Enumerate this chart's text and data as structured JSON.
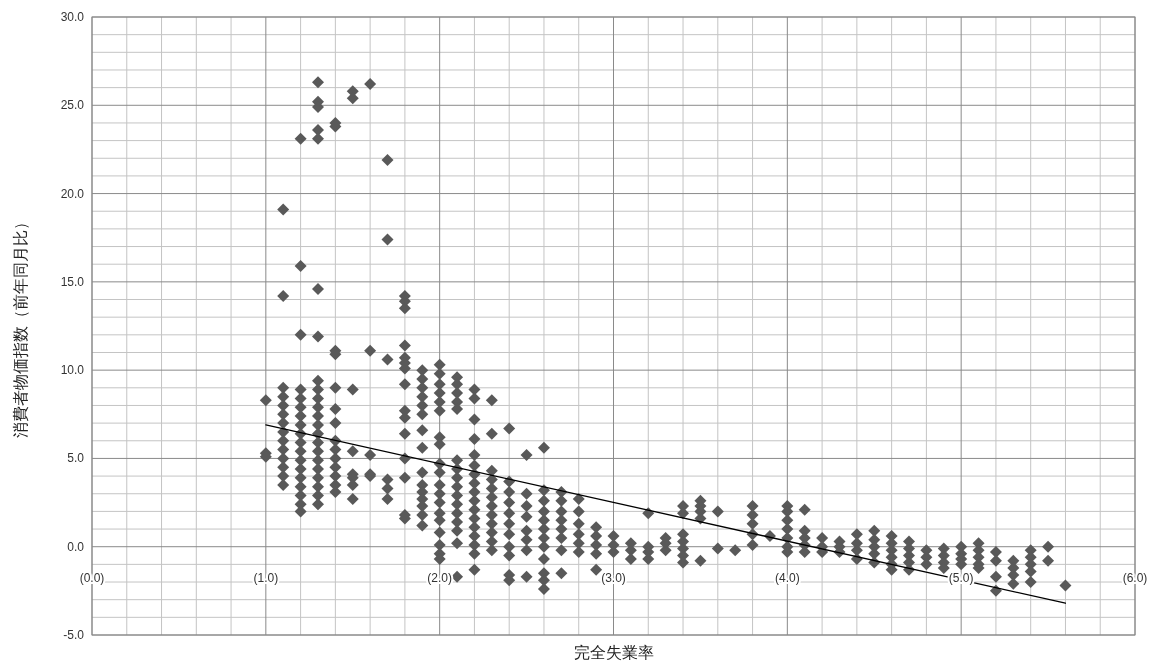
{
  "chart_data": {
    "type": "scatter",
    "xlabel": "完全失業率",
    "ylabel": "消費者物価指数（前年同月比）",
    "grid": true,
    "xlim": [
      0,
      6
    ],
    "ylim": [
      -5,
      30
    ],
    "xticks": [
      {
        "value": 0,
        "label": "(0.0)"
      },
      {
        "value": 1,
        "label": "(1.0)"
      },
      {
        "value": 2,
        "label": "(2.0)"
      },
      {
        "value": 3,
        "label": "(3.0)"
      },
      {
        "value": 4,
        "label": "(4.0)"
      },
      {
        "value": 5,
        "label": "(5.0)"
      },
      {
        "value": 6,
        "label": "(6.0)"
      }
    ],
    "yticks": [
      {
        "value": -5,
        "label": "-5.0"
      },
      {
        "value": 0,
        "label": "0.0"
      },
      {
        "value": 5,
        "label": "5.0"
      },
      {
        "value": 10,
        "label": "10.0"
      },
      {
        "value": 15,
        "label": "15.0"
      },
      {
        "value": 20,
        "label": "20.0"
      },
      {
        "value": 25,
        "label": "25.0"
      },
      {
        "value": 30,
        "label": "30.0"
      }
    ],
    "series": [
      {
        "type": "scatter",
        "marker": "diamond",
        "color": "#595959",
        "x": [
          1.0,
          1.0,
          1.0,
          1.1,
          1.1,
          1.1,
          1.1,
          1.1,
          1.1,
          1.1,
          1.1,
          1.1,
          1.1,
          1.1,
          1.1,
          1.1,
          1.1,
          1.2,
          1.2,
          1.2,
          1.2,
          1.2,
          1.2,
          1.2,
          1.2,
          1.2,
          1.2,
          1.2,
          1.2,
          1.2,
          1.2,
          1.2,
          1.2,
          1.2,
          1.2,
          1.3,
          1.3,
          1.3,
          1.3,
          1.3,
          1.3,
          1.3,
          1.3,
          1.3,
          1.3,
          1.3,
          1.3,
          1.3,
          1.3,
          1.3,
          1.3,
          1.3,
          1.3,
          1.3,
          1.3,
          1.3,
          1.3,
          1.4,
          1.4,
          1.4,
          1.4,
          1.4,
          1.4,
          1.4,
          1.4,
          1.4,
          1.4,
          1.4,
          1.4,
          1.4,
          1.4,
          1.5,
          1.5,
          1.5,
          1.5,
          1.5,
          1.5,
          1.5,
          1.5,
          1.6,
          1.6,
          1.6,
          1.6,
          1.6,
          1.7,
          1.7,
          1.7,
          1.7,
          1.7,
          1.7,
          1.8,
          1.8,
          1.8,
          1.8,
          1.8,
          1.8,
          1.8,
          1.8,
          1.8,
          1.8,
          1.8,
          1.8,
          1.8,
          1.8,
          1.8,
          1.9,
          1.9,
          1.9,
          1.9,
          1.9,
          1.9,
          1.9,
          1.9,
          1.9,
          1.9,
          1.9,
          1.9,
          1.9,
          1.9,
          1.9,
          2.0,
          2.0,
          2.0,
          2.0,
          2.0,
          2.0,
          2.0,
          2.0,
          2.0,
          2.0,
          2.0,
          2.0,
          2.0,
          2.0,
          2.0,
          2.0,
          2.0,
          2.0,
          2.0,
          2.1,
          2.1,
          2.1,
          2.1,
          2.1,
          2.1,
          2.1,
          2.1,
          2.1,
          2.1,
          2.1,
          2.1,
          2.1,
          2.1,
          2.1,
          2.1,
          2.2,
          2.2,
          2.2,
          2.2,
          2.2,
          2.2,
          2.2,
          2.2,
          2.2,
          2.2,
          2.2,
          2.2,
          2.2,
          2.2,
          2.2,
          2.2,
          2.2,
          2.3,
          2.3,
          2.3,
          2.3,
          2.3,
          2.3,
          2.3,
          2.3,
          2.3,
          2.3,
          2.3,
          2.3,
          2.4,
          2.4,
          2.4,
          2.4,
          2.4,
          2.4,
          2.4,
          2.4,
          2.4,
          2.4,
          2.4,
          2.5,
          2.5,
          2.5,
          2.5,
          2.5,
          2.5,
          2.5,
          2.5,
          2.6,
          2.6,
          2.6,
          2.6,
          2.6,
          2.6,
          2.6,
          2.6,
          2.6,
          2.6,
          2.6,
          2.6,
          2.7,
          2.7,
          2.7,
          2.7,
          2.7,
          2.7,
          2.7,
          2.7,
          2.8,
          2.8,
          2.8,
          2.8,
          2.8,
          2.8,
          2.9,
          2.9,
          2.9,
          2.9,
          2.9,
          3.0,
          3.0,
          3.0,
          3.1,
          3.1,
          3.1,
          3.2,
          3.2,
          3.2,
          3.2,
          3.3,
          3.3,
          3.3,
          3.4,
          3.4,
          3.4,
          3.4,
          3.4,
          3.4,
          3.4,
          3.5,
          3.5,
          3.5,
          3.5,
          3.5,
          3.6,
          3.6,
          3.7,
          3.8,
          3.8,
          3.8,
          3.8,
          3.8,
          3.9,
          4.0,
          4.0,
          4.0,
          4.0,
          4.0,
          4.0,
          4.0,
          4.1,
          4.1,
          4.1,
          4.1,
          4.1,
          4.2,
          4.2,
          4.2,
          4.3,
          4.3,
          4.3,
          4.4,
          4.4,
          4.4,
          4.4,
          4.5,
          4.5,
          4.5,
          4.5,
          4.5,
          4.6,
          4.6,
          4.6,
          4.6,
          4.6,
          4.6,
          4.7,
          4.7,
          4.7,
          4.7,
          4.7,
          4.8,
          4.8,
          4.8,
          4.9,
          4.9,
          4.9,
          4.9,
          5.0,
          5.0,
          5.0,
          5.0,
          5.1,
          5.1,
          5.1,
          5.1,
          5.1,
          5.2,
          5.2,
          5.2,
          5.2,
          5.3,
          5.3,
          5.3,
          5.3,
          5.4,
          5.4,
          5.4,
          5.4,
          5.4,
          5.5,
          5.5,
          5.6
        ],
        "values": [
          8.3,
          5.3,
          5.1,
          19.1,
          14.2,
          9.0,
          8.5,
          8.0,
          7.5,
          7.0,
          6.5,
          6.0,
          5.5,
          5.0,
          4.5,
          4.0,
          3.5,
          23.1,
          15.9,
          12.0,
          8.9,
          8.4,
          7.9,
          7.4,
          6.9,
          6.4,
          5.9,
          5.4,
          4.9,
          4.4,
          3.9,
          3.4,
          2.9,
          2.4,
          2.0,
          26.3,
          25.2,
          24.9,
          23.6,
          23.1,
          14.6,
          11.9,
          9.4,
          8.9,
          8.4,
          7.9,
          7.4,
          6.9,
          6.4,
          5.9,
          5.4,
          4.9,
          4.4,
          3.9,
          3.4,
          2.9,
          2.4,
          24.0,
          23.8,
          11.1,
          10.9,
          9.0,
          7.8,
          7.0,
          6.0,
          5.5,
          5.0,
          4.5,
          4.0,
          3.5,
          3.1,
          25.8,
          25.4,
          8.9,
          5.4,
          4.1,
          3.9,
          3.5,
          2.7,
          26.2,
          11.1,
          5.2,
          4.1,
          4.0,
          21.9,
          17.4,
          10.6,
          3.8,
          3.3,
          2.7,
          14.2,
          13.9,
          13.5,
          11.4,
          10.7,
          10.4,
          10.1,
          9.2,
          7.7,
          7.3,
          6.4,
          5.0,
          3.9,
          1.8,
          1.6,
          10.0,
          9.5,
          9.0,
          8.5,
          8.0,
          7.5,
          6.6,
          5.6,
          4.2,
          3.5,
          3.1,
          2.7,
          2.3,
          1.8,
          1.2,
          10.3,
          9.8,
          9.2,
          8.7,
          8.2,
          7.7,
          6.2,
          5.8,
          4.7,
          4.2,
          3.5,
          3.0,
          2.5,
          1.9,
          1.5,
          0.8,
          0.1,
          -0.4,
          -0.7,
          9.6,
          9.2,
          8.7,
          8.2,
          7.8,
          4.9,
          4.4,
          3.9,
          3.4,
          2.9,
          2.4,
          1.9,
          1.4,
          0.9,
          0.2,
          -1.7,
          8.9,
          8.4,
          7.2,
          6.1,
          5.2,
          4.6,
          4.1,
          3.6,
          3.1,
          2.6,
          2.1,
          1.6,
          1.1,
          0.6,
          0.1,
          -0.4,
          -1.3,
          8.3,
          6.4,
          4.3,
          3.8,
          3.3,
          2.8,
          2.3,
          1.8,
          1.3,
          0.8,
          0.3,
          -0.2,
          6.7,
          3.7,
          3.1,
          2.5,
          1.9,
          1.3,
          0.7,
          0.0,
          -0.5,
          -1.6,
          -1.9,
          5.2,
          3.0,
          2.3,
          1.7,
          0.9,
          0.4,
          -0.2,
          -1.7,
          5.6,
          3.2,
          2.6,
          2.0,
          1.5,
          1.0,
          0.5,
          0.0,
          -0.7,
          -1.5,
          -1.9,
          -2.4,
          3.1,
          2.6,
          2.0,
          1.5,
          1.0,
          0.5,
          -0.2,
          -1.5,
          2.7,
          2.0,
          1.3,
          0.7,
          0.2,
          -0.3,
          1.1,
          0.6,
          0.1,
          -0.4,
          -1.3,
          0.6,
          0.1,
          -0.3,
          0.2,
          -0.2,
          -0.7,
          1.9,
          0.0,
          -0.3,
          -0.7,
          0.5,
          0.2,
          -0.2,
          2.3,
          1.9,
          0.7,
          0.3,
          -0.1,
          -0.5,
          -0.9,
          2.6,
          2.3,
          2.0,
          1.6,
          -0.8,
          2.0,
          -0.1,
          -0.2,
          2.3,
          1.8,
          1.3,
          0.7,
          0.1,
          0.6,
          2.3,
          2.0,
          1.5,
          1.0,
          0.5,
          0.0,
          -0.3,
          2.1,
          0.9,
          0.5,
          0.1,
          -0.3,
          0.5,
          0.0,
          -0.3,
          0.3,
          0.0,
          -0.3,
          0.7,
          0.2,
          -0.2,
          -0.7,
          0.9,
          0.4,
          0.0,
          -0.4,
          -0.9,
          0.6,
          0.2,
          -0.2,
          -0.6,
          -1.0,
          -1.3,
          0.3,
          -0.1,
          -0.5,
          -0.9,
          -1.3,
          -0.2,
          -0.6,
          -1.0,
          -0.1,
          -0.5,
          -0.9,
          -1.2,
          0.0,
          -0.4,
          -0.7,
          -1.0,
          0.2,
          -0.2,
          -0.6,
          -1.0,
          -1.2,
          -0.3,
          -0.8,
          -1.7,
          -2.5,
          -0.8,
          -1.2,
          -1.6,
          -2.1,
          -0.2,
          -0.6,
          -1.0,
          -1.4,
          -2.0,
          0.0,
          -0.8,
          -2.2
        ]
      },
      {
        "type": "line",
        "color": "#000000",
        "x": [
          1.0,
          5.6
        ],
        "values": [
          6.9,
          -3.2
        ]
      }
    ]
  }
}
